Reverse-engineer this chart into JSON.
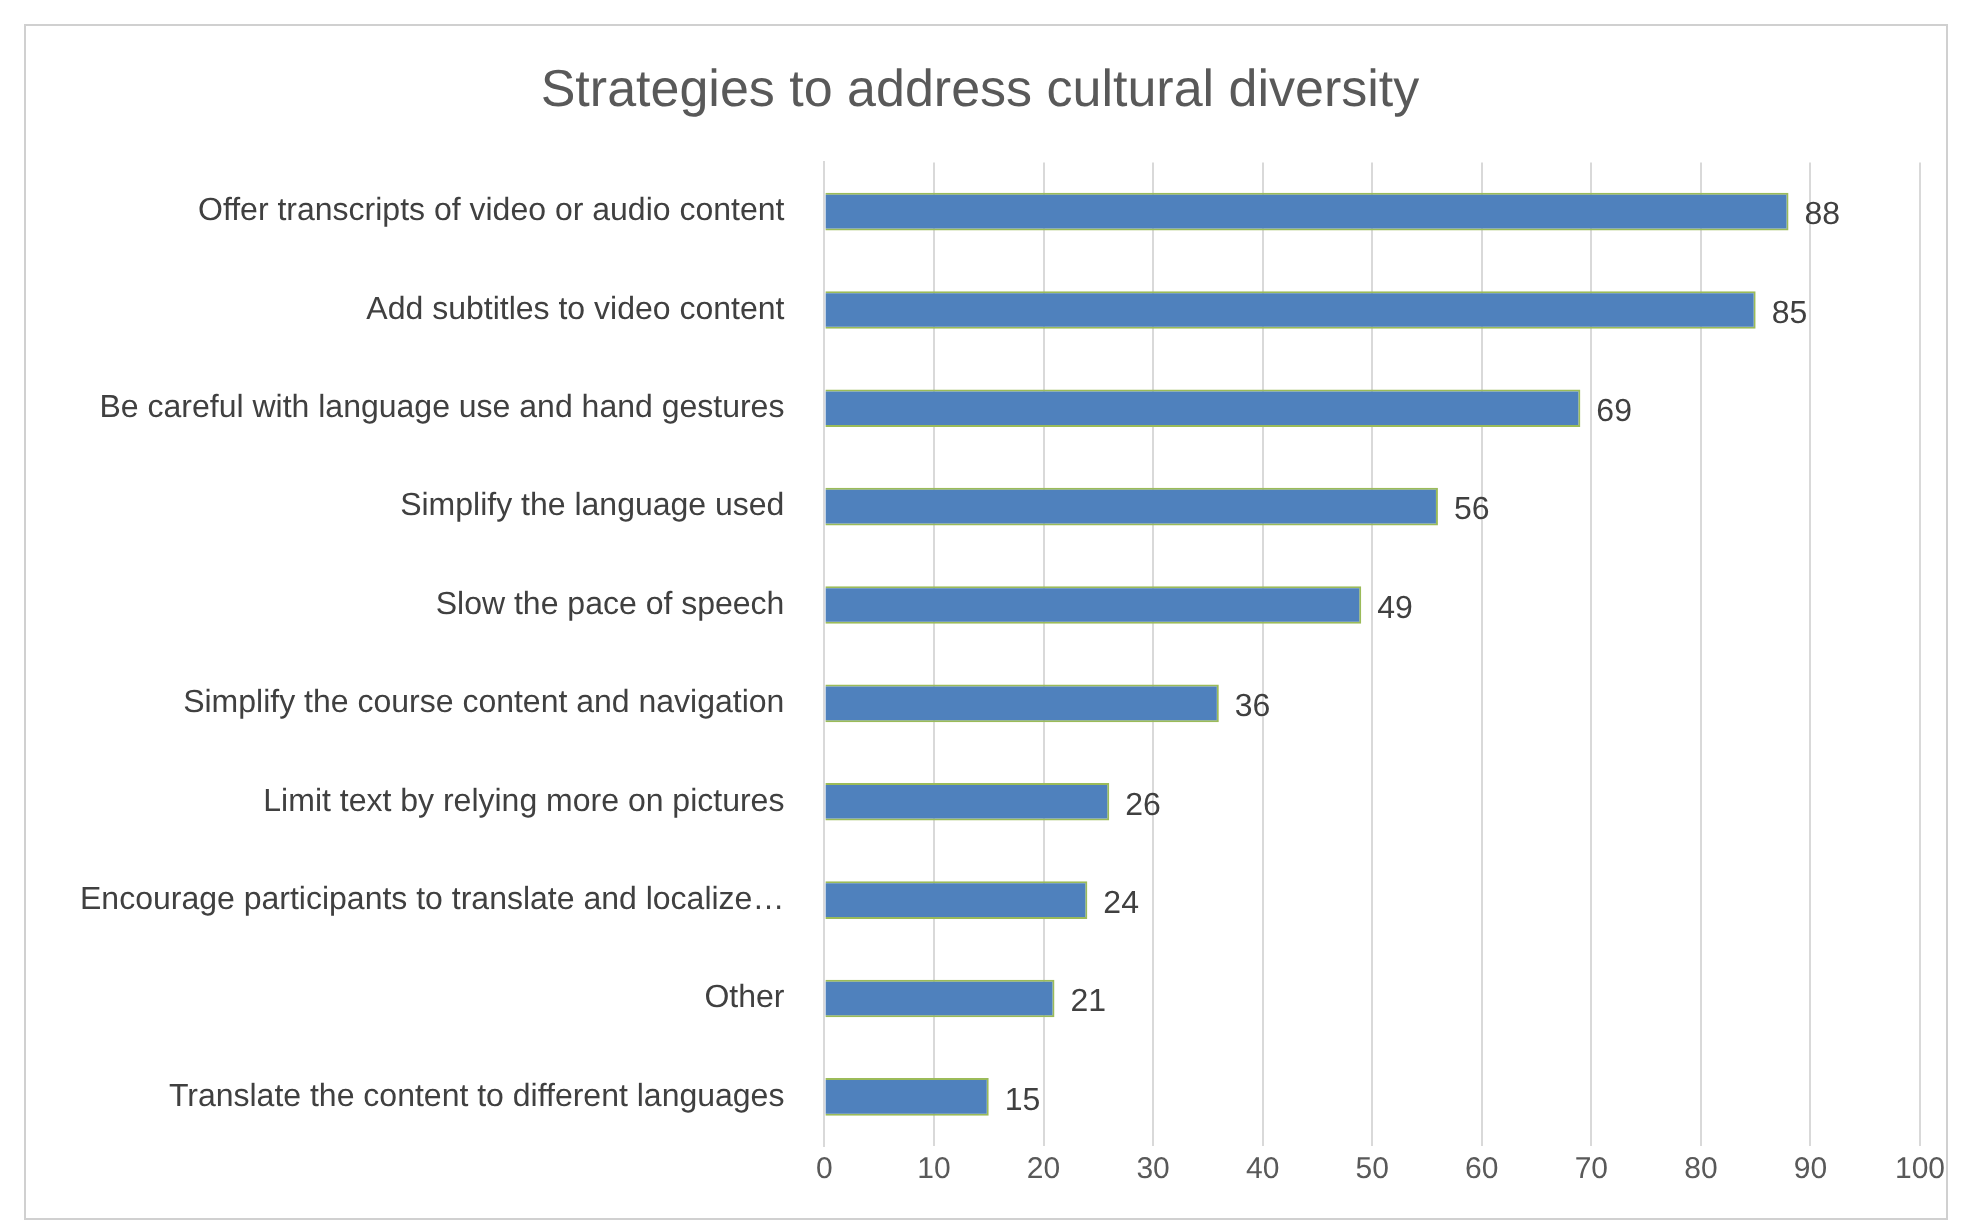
{
  "chart_data": {
    "type": "bar",
    "orientation": "horizontal",
    "title": "Strategies to address cultural diversity",
    "categories": [
      "Offer transcripts of video or audio content",
      "Add subtitles to video content",
      "Be careful with language use and hand gestures",
      "Simplify the language used",
      "Slow the pace of speech",
      "Simplify the course content and navigation",
      "Limit text by relying more on pictures",
      "Encourage participants to translate and localize…",
      "Other",
      "Translate the content to different languages"
    ],
    "values": [
      88,
      85,
      69,
      56,
      49,
      36,
      26,
      24,
      21,
      15
    ],
    "color": "#4f81bd",
    "xlim": [
      0,
      100
    ],
    "xticks": [
      0,
      10,
      20,
      30,
      40,
      50,
      60,
      70,
      80,
      90,
      100
    ],
    "grid": "x",
    "data_labels": true,
    "legend": false
  }
}
